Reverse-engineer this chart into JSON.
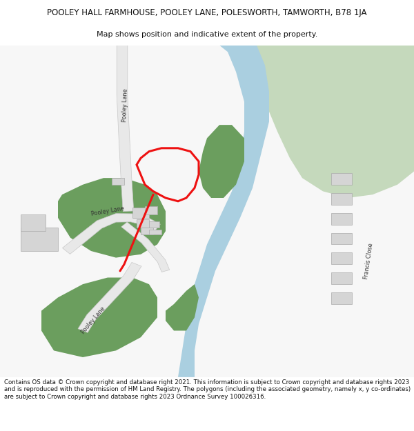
{
  "title_line1": "POOLEY HALL FARMHOUSE, POOLEY LANE, POLESWORTH, TAMWORTH, B78 1JA",
  "title_line2": "Map shows position and indicative extent of the property.",
  "footer": "Contains OS data © Crown copyright and database right 2021. This information is subject to Crown copyright and database rights 2023 and is reproduced with the permission of HM Land Registry. The polygons (including the associated geometry, namely x, y co-ordinates) are subject to Crown copyright and database rights 2023 Ordnance Survey 100026316.",
  "bg_color": "#ffffff",
  "light_green": "#c5d9bc",
  "dark_green": "#6b9e5e",
  "river_blue": "#aacfe0",
  "road_fill": "#e8e8e8",
  "road_edge": "#c8c8c8",
  "building_fill": "#d5d5d5",
  "building_edge": "#aaaaaa",
  "red_color": "#ee1111",
  "text_color": "#333333",
  "map_bg": "#f7f7f7"
}
